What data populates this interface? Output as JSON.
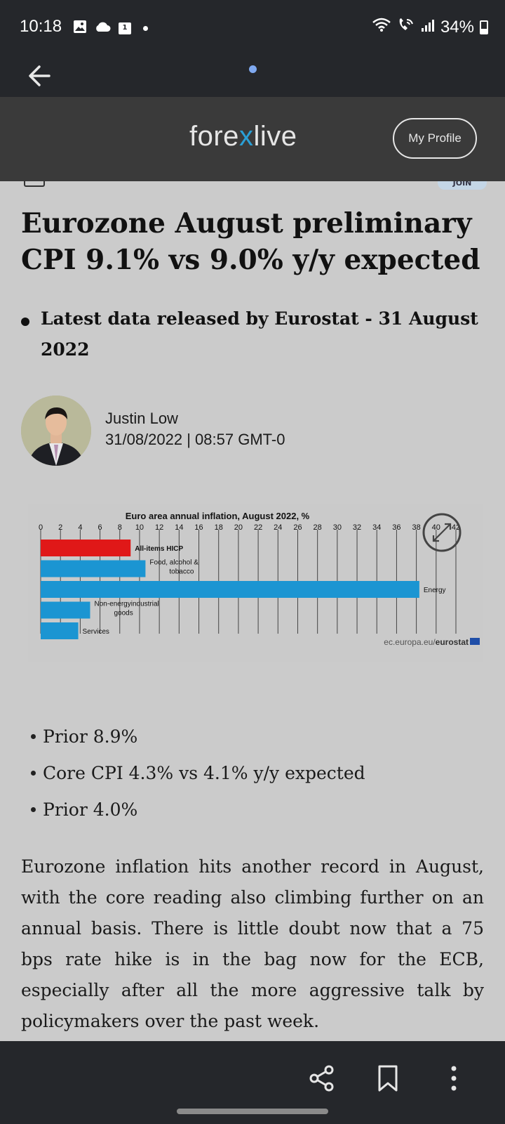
{
  "status_bar": {
    "time": "10:18",
    "battery": "34%",
    "calendar_day": "1",
    "icons": [
      "gallery-icon",
      "cloud-icon",
      "calendar-icon",
      "notification-dot-icon",
      "wifi-icon",
      "wifi-calling-icon",
      "signal-icon",
      "battery-icon"
    ]
  },
  "browser": {
    "back_icon": "arrow-left-icon",
    "loading_indicator_color": "#7fa9f0"
  },
  "site_header": {
    "logo_pre": "fore",
    "logo_x": "x",
    "logo_post": "live",
    "logo_accent_color": "#2a9fd6",
    "profile_button": "My Profile"
  },
  "clipped": {
    "join_label": "JOIN"
  },
  "article": {
    "headline": "Eurozone August preliminary CPI 9.1% vs 9.0% y/y expected",
    "key_point": "Latest data released by Eurostat - 31 August 2022",
    "author_name": "Justin Low",
    "author_date": "31/08/2022 | 08:57 GMT-0",
    "bullets": [
      "Prior 8.9%",
      "Core CPI 4.3% vs 4.1% y/y expected",
      "Prior 4.0%"
    ],
    "paragraph": "Eurozone inflation hits another record in August, with the core reading also climbing further on an annual basis. There is little doubt now that a 75 bps rate hike is in the bag now for the ECB, especially after all the more aggressive talk by policymakers over the past week."
  },
  "chart_data": {
    "type": "bar",
    "orientation": "horizontal",
    "title": "Euro area annual inflation, August 2022, %",
    "categories": [
      "All-items HICP",
      "Food, alcohol & tobacco",
      "Energy",
      "Non-energy industrial goods",
      "Services"
    ],
    "label_lines": [
      [
        "All-items HICP"
      ],
      [
        "Food, alcohol &",
        "tobacco"
      ],
      [
        "Energy"
      ],
      [
        "Non-energyindustrial",
        "goods"
      ],
      [
        "Services"
      ]
    ],
    "values": [
      9.1,
      10.6,
      38.3,
      5.0,
      3.8
    ],
    "colors": [
      "#e01818",
      "#1b95d2",
      "#1b95d2",
      "#1b95d2",
      "#1b95d2"
    ],
    "highlight_label": "All-items HICP",
    "xlim": [
      0,
      42
    ],
    "x_ticks": [
      0,
      2,
      4,
      6,
      8,
      10,
      12,
      14,
      16,
      18,
      20,
      22,
      24,
      26,
      28,
      30,
      32,
      34,
      36,
      38,
      40,
      42
    ],
    "grid": true,
    "source_prefix": "ec.europa.eu/",
    "source_brand": "eurostat",
    "expand_icon": "expand-icon"
  },
  "bottom_bar": {
    "icons": [
      "share-icon",
      "bookmark-icon",
      "more-vert-icon"
    ]
  }
}
